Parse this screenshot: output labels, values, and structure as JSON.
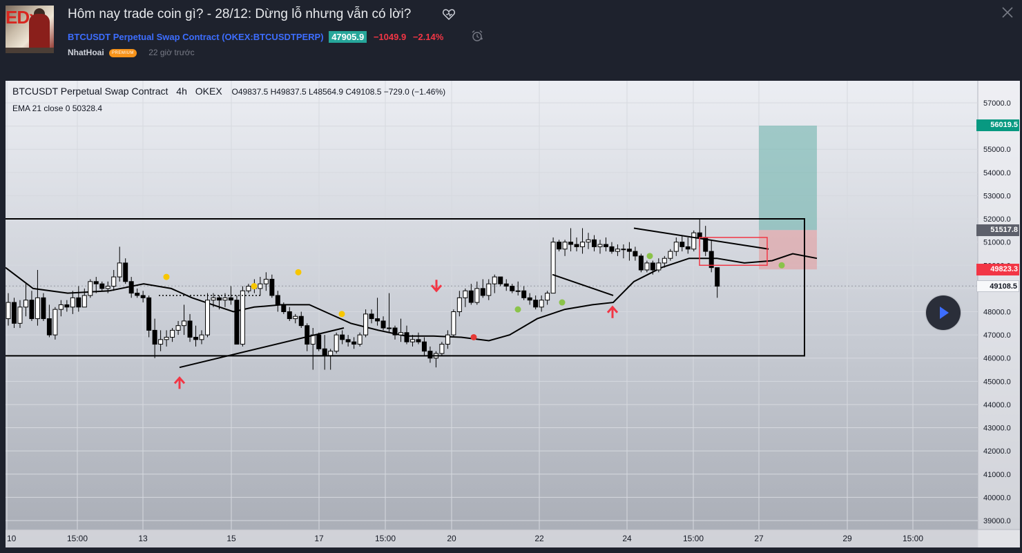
{
  "post": {
    "title": "Hôm nay trade coin gì? - 28/12: Dừng lỗ nhưng vẫn có lời?",
    "symbol_name": "BTCUSDT Perpetual Swap Contract",
    "symbol_code": "OKEX:BTCUSDTPERP",
    "price": "47905.9",
    "change": "−1049.9",
    "change_pct": "−2.14%",
    "author": "NhatHoai",
    "author_badge": "PREMIUM",
    "time_ago": "22 giờ trước",
    "thumb_logo": "EDx"
  },
  "chart": {
    "legend_symbol": "BTCUSDT Perpetual Swap Contract",
    "legend_interval": "4h",
    "legend_exchange": "OKEX",
    "legend_ohlc": "O49837.5  H49837.5  L48564.9  C49108.5  −729.0 (−1.46%)",
    "indicator": "EMA 21 close 0   50328.4",
    "badges": {
      "target": "56019.5",
      "entry": "51517.8",
      "stop": "49823.3",
      "last": "49108.5"
    },
    "colors": {
      "up": "#ffffff",
      "down": "#000000",
      "profit": "#6fb4ad",
      "loss": "#e29c9f",
      "accent_green": "#26a69a",
      "accent_red": "#f23645"
    }
  },
  "chart_data": {
    "type": "candlestick",
    "y_ticks": [
      39000,
      40000,
      41000,
      42000,
      43000,
      44000,
      45000,
      46000,
      47000,
      48000,
      49000,
      50000,
      51000,
      52000,
      53000,
      54000,
      55000,
      56000,
      57000
    ],
    "y_tick_labels": [
      "39000.0",
      "40000.0",
      "41000.0",
      "42000.0",
      "43000.0",
      "44000.0",
      "45000.0",
      "46000.0",
      "47000.0",
      "48000.0",
      "49000.0",
      "50000.0",
      "51000.0",
      "52000.0",
      "53000.0",
      "54000.0",
      "55000.0",
      "56000.0",
      "57000.0"
    ],
    "x_labels": [
      "10",
      "15:00",
      "13",
      "15",
      "17",
      "15:00",
      "20",
      "22",
      "24",
      "15:00",
      "27",
      "29",
      "15:00"
    ],
    "ylim": [
      38500,
      57500
    ],
    "grid": true
  }
}
